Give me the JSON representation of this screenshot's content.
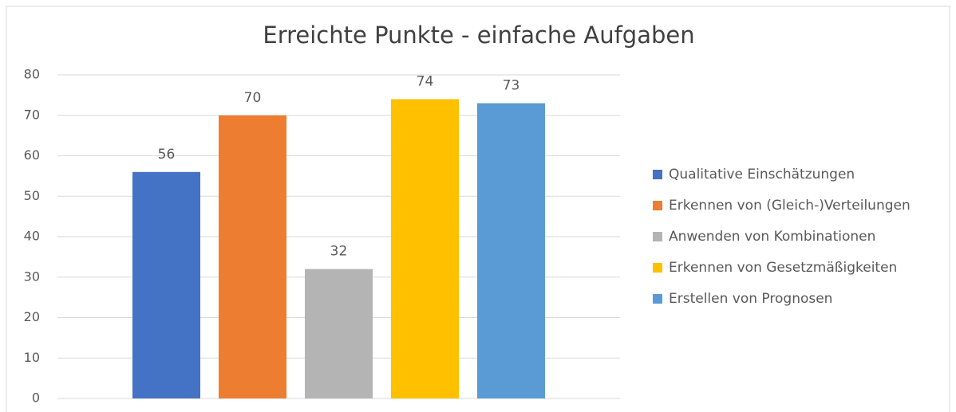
{
  "chart_data": {
    "type": "bar",
    "title": "Erreichte Punkte - einfache Aufgaben",
    "series": [
      {
        "name": "Qualitative Einschätzungen",
        "color": "#4472c4",
        "values": [
          56
        ]
      },
      {
        "name": "Erkennen von (Gleich-)Verteilungen",
        "color": "#ed7d31",
        "values": [
          70
        ]
      },
      {
        "name": "Anwenden von Kombinationen",
        "color": "#b4b4b4",
        "values": [
          32
        ]
      },
      {
        "name": "Erkennen von Gesetzmäßigkeiten",
        "color": "#ffc000",
        "values": [
          74
        ]
      },
      {
        "name": "Erstellen von Prognosen",
        "color": "#5b9bd5",
        "values": [
          73
        ]
      }
    ],
    "ylim": [
      0,
      80
    ],
    "yticks": [
      0,
      10,
      20,
      30,
      40,
      50,
      60,
      70,
      80
    ],
    "grid": true,
    "legend": "right"
  }
}
